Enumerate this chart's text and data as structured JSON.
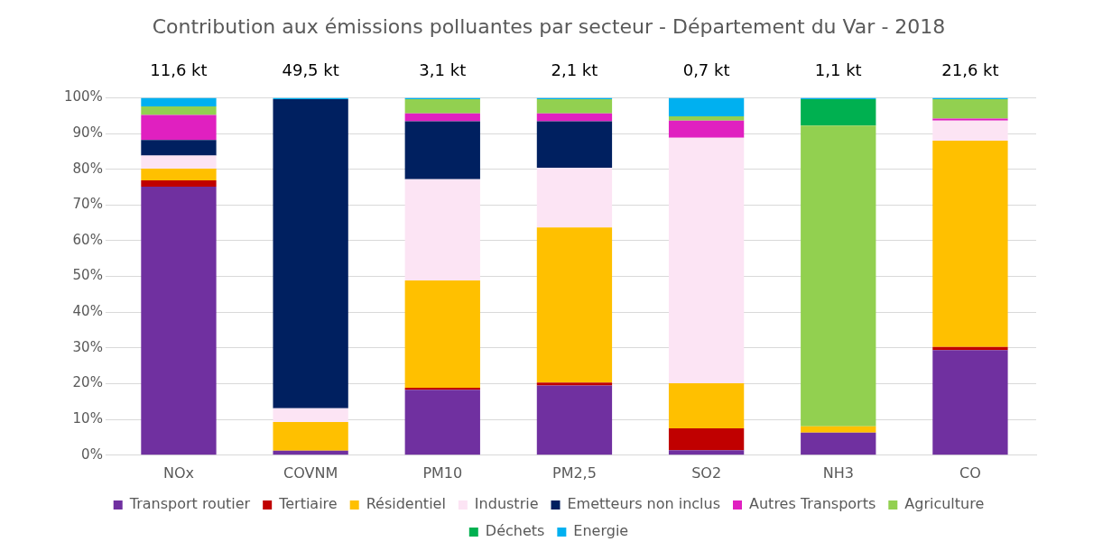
{
  "chart_data": {
    "type": "bar",
    "stacked": true,
    "title": "Contribution aux émissions polluantes par secteur - Département du Var - 2018",
    "categories": [
      "NOx",
      "COVNM",
      "PM10",
      "PM2,5",
      "SO2",
      "NH3",
      "CO"
    ],
    "series": [
      {
        "name": "Transport routier",
        "color": "#7030a0",
        "values": [
          75.1,
          1.3,
          18.3,
          19.5,
          1.4,
          6.3,
          29.4
        ]
      },
      {
        "name": "Tertiaire",
        "color": "#c00000",
        "values": [
          1.8,
          0,
          0.6,
          0.8,
          6.1,
          0,
          0.9
        ]
      },
      {
        "name": "Résidentiel",
        "color": "#ffc000",
        "values": [
          3.3,
          8.0,
          30.0,
          43.4,
          12.6,
          1.8,
          57.7
        ]
      },
      {
        "name": "Industrie",
        "color": "#fce4f4",
        "values": [
          3.6,
          3.8,
          28.3,
          16.7,
          68.7,
          0,
          5.6
        ]
      },
      {
        "name": "Emetteurs non inclus",
        "color": "#002060",
        "values": [
          4.4,
          86.5,
          16.2,
          13.0,
          0,
          0,
          0
        ]
      },
      {
        "name": "Autres Transports",
        "color": "#e020c0",
        "values": [
          7.0,
          0,
          2.2,
          2.2,
          4.8,
          0,
          0.6
        ]
      },
      {
        "name": "Agriculture",
        "color": "#92d050",
        "values": [
          2.4,
          0,
          4.0,
          4.0,
          1.2,
          84.1,
          5.4
        ]
      },
      {
        "name": "Déchets",
        "color": "#00b050",
        "values": [
          0,
          0,
          0,
          0,
          0,
          7.4,
          0
        ]
      },
      {
        "name": "Energie",
        "color": "#00b0f0",
        "values": [
          2.4,
          0.4,
          0.4,
          0.4,
          5.2,
          0.4,
          0.4
        ]
      }
    ],
    "annotations": [
      {
        "text": "11,6 kt",
        "x": "NOx",
        "y": 100
      },
      {
        "text": "49,5 kt",
        "x": "COVNM",
        "y": 100
      },
      {
        "text": "3,1 kt",
        "x": "PM10",
        "y": 100
      },
      {
        "text": "2,1 kt",
        "x": "PM2,5",
        "y": 100
      },
      {
        "text": "0,7 kt",
        "x": "SO2",
        "y": 100
      },
      {
        "text": "1,1 kt",
        "x": "NH3",
        "y": 100
      },
      {
        "text": "21,6 kt",
        "x": "CO",
        "y": 100
      }
    ],
    "ylim": [
      0,
      100
    ],
    "yticks": [
      {
        "value": 0,
        "label": "0%"
      },
      {
        "value": 10,
        "label": "10%"
      },
      {
        "value": 20,
        "label": "20%"
      },
      {
        "value": 30,
        "label": "30%"
      },
      {
        "value": 40,
        "label": "40%"
      },
      {
        "value": 50,
        "label": "50%"
      },
      {
        "value": 60,
        "label": "60%"
      },
      {
        "value": 70,
        "label": "70%"
      },
      {
        "value": 80,
        "label": "80%"
      },
      {
        "value": 90,
        "label": "90%"
      },
      {
        "value": 100,
        "label": "100%"
      }
    ],
    "grid": "y",
    "legend": "bottom"
  }
}
